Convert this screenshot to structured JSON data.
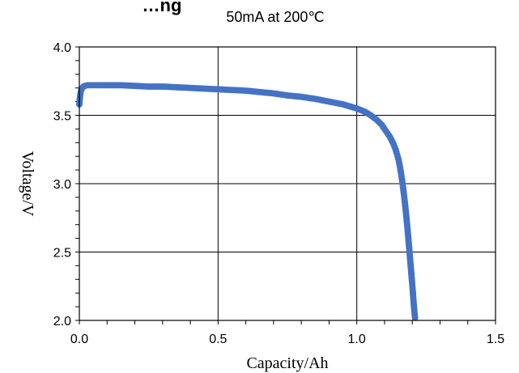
{
  "chart_data": {
    "type": "scatter",
    "title": "…ng",
    "subtitle": "50mA at 200℃",
    "xlabel": "Capacity/Ah",
    "ylabel": "Voltage/V",
    "xlim": [
      0.0,
      1.5
    ],
    "ylim": [
      2.0,
      4.0
    ],
    "x_ticks": [
      0.0,
      0.5,
      1.0,
      1.5
    ],
    "x_tick_labels": [
      "0.0",
      "0.5",
      "1.0",
      "1.5"
    ],
    "y_ticks": [
      2.0,
      2.5,
      3.0,
      3.5,
      4.0
    ],
    "y_tick_labels": [
      "2.0",
      "2.5",
      "3.0",
      "3.5",
      "4.0"
    ],
    "grid": true,
    "legend": "none",
    "marker_color": "#4472C4",
    "series": [
      {
        "x": [
          0.0,
          0.002,
          0.004,
          0.006,
          0.008,
          0.01,
          0.015,
          0.02,
          0.03,
          0.04,
          0.06,
          0.08,
          0.1,
          0.15,
          0.2,
          0.25,
          0.3,
          0.35,
          0.4,
          0.45,
          0.5,
          0.55,
          0.6,
          0.65,
          0.7,
          0.75,
          0.8,
          0.85,
          0.9,
          0.95,
          1.0,
          1.03,
          1.05,
          1.07,
          1.09,
          1.1,
          1.12,
          1.13,
          1.14,
          1.15,
          1.155,
          1.16,
          1.165,
          1.17,
          1.175,
          1.18,
          1.185,
          1.19,
          1.195,
          1.2,
          1.203,
          1.206,
          1.21
        ],
        "y": [
          3.58,
          3.63,
          3.66,
          3.68,
          3.69,
          3.7,
          3.71,
          3.715,
          3.72,
          3.72,
          3.72,
          3.72,
          3.72,
          3.72,
          3.715,
          3.71,
          3.71,
          3.705,
          3.7,
          3.695,
          3.69,
          3.685,
          3.68,
          3.67,
          3.66,
          3.645,
          3.635,
          3.62,
          3.6,
          3.58,
          3.55,
          3.525,
          3.5,
          3.47,
          3.43,
          3.4,
          3.34,
          3.3,
          3.25,
          3.18,
          3.13,
          3.07,
          3.0,
          2.92,
          2.83,
          2.73,
          2.62,
          2.5,
          2.38,
          2.26,
          2.18,
          2.1,
          2.02
        ]
      }
    ]
  }
}
